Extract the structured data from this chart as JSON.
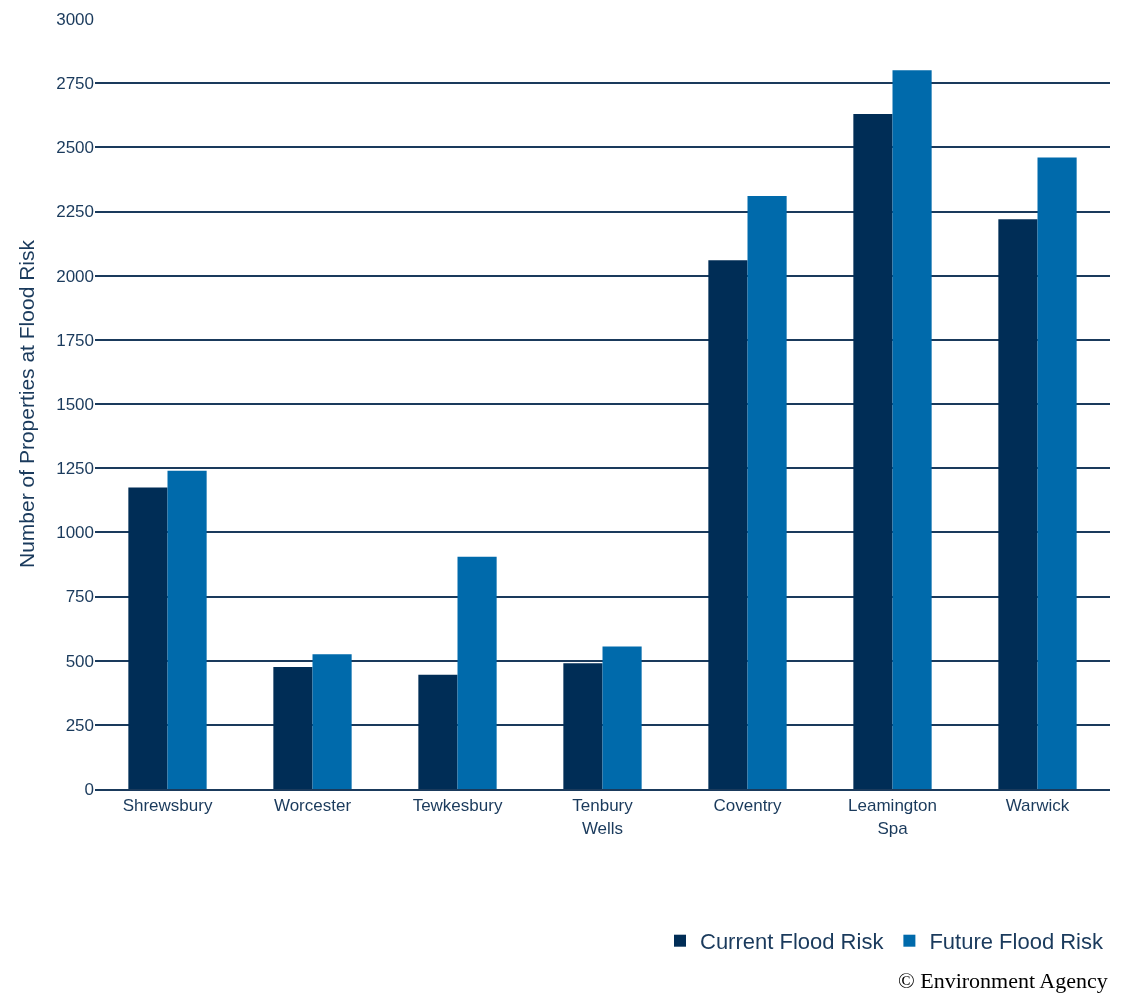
{
  "chart_data": {
    "type": "bar",
    "ylabel": "Number of Properties at Flood Risk",
    "categories": [
      "Shrewsbury",
      "Worcester",
      "Tewkesbury",
      "Tenbury\nWells",
      "Coventry",
      "Leamington\nSpa",
      "Warwick"
    ],
    "series": [
      {
        "name": "Current Flood Risk",
        "color": "#002d56",
        "values": [
          1175,
          475,
          445,
          490,
          2060,
          2630,
          2220
        ]
      },
      {
        "name": "Future Flood Risk",
        "color": "#006aab",
        "values": [
          1240,
          525,
          905,
          555,
          2310,
          2800,
          2460
        ]
      }
    ],
    "ylim": [
      0,
      3000
    ],
    "yticks": [
      0,
      250,
      500,
      750,
      1000,
      1250,
      1500,
      1750,
      2000,
      2250,
      2500,
      2750,
      3000
    ],
    "grid": "y",
    "legend": "bottom right",
    "annotations": [
      "© Environment Agency"
    ]
  }
}
